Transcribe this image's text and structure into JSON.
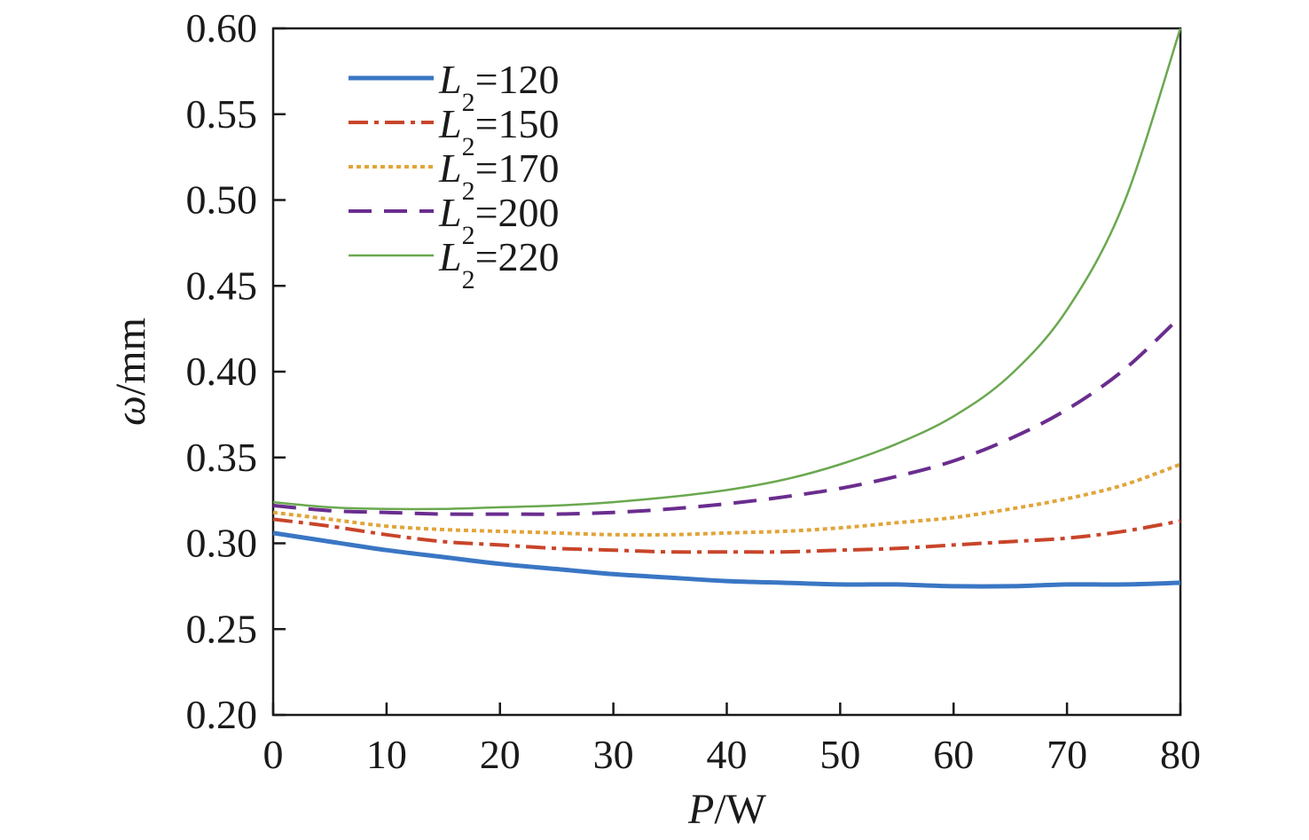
{
  "chart_data": {
    "type": "line",
    "xlabel": {
      "var": "P",
      "unit": "/W"
    },
    "ylabel": {
      "var": "ω",
      "unit": "/mm"
    },
    "xlim": [
      0,
      80
    ],
    "ylim": [
      0.2,
      0.6
    ],
    "xticks": [
      0,
      10,
      20,
      30,
      40,
      50,
      60,
      70,
      80
    ],
    "yticks": [
      0.2,
      0.25,
      0.3,
      0.35,
      0.4,
      0.45,
      0.5,
      0.55,
      0.6
    ],
    "ytick_labels": [
      "0.20",
      "0.25",
      "0.30",
      "0.35",
      "0.40",
      "0.45",
      "0.50",
      "0.55",
      "0.60"
    ],
    "grid": false,
    "legend_position": "top-left",
    "x": [
      0,
      5,
      10,
      15,
      20,
      25,
      30,
      35,
      40,
      45,
      50,
      55,
      60,
      65,
      70,
      75,
      80
    ],
    "series": [
      {
        "name": "120",
        "label_var": "L",
        "label_sub": "2",
        "label_eq": "=120",
        "color": "#3a76c4",
        "style": "solid",
        "width": 5,
        "values": [
          0.306,
          0.301,
          0.296,
          0.292,
          0.288,
          0.285,
          0.282,
          0.28,
          0.278,
          0.277,
          0.276,
          0.276,
          0.275,
          0.275,
          0.276,
          0.276,
          0.277
        ]
      },
      {
        "name": "150",
        "label_var": "L",
        "label_sub": "2",
        "label_eq": "=150",
        "color": "#c8452a",
        "style": "dashdot",
        "width": 4,
        "values": [
          0.314,
          0.31,
          0.305,
          0.301,
          0.299,
          0.297,
          0.296,
          0.295,
          0.295,
          0.295,
          0.296,
          0.297,
          0.299,
          0.301,
          0.303,
          0.307,
          0.313
        ]
      },
      {
        "name": "170",
        "label_var": "L",
        "label_sub": "2",
        "label_eq": "=170",
        "color": "#e0a53a",
        "style": "dotted",
        "width": 4,
        "values": [
          0.318,
          0.314,
          0.31,
          0.308,
          0.307,
          0.306,
          0.305,
          0.305,
          0.306,
          0.307,
          0.309,
          0.312,
          0.315,
          0.32,
          0.326,
          0.334,
          0.346
        ]
      },
      {
        "name": "200",
        "label_var": "L",
        "label_sub": "2",
        "label_eq": "=200",
        "color": "#6a2d8e",
        "style": "dashed",
        "width": 4,
        "values": [
          0.322,
          0.319,
          0.318,
          0.317,
          0.317,
          0.317,
          0.318,
          0.32,
          0.323,
          0.327,
          0.332,
          0.339,
          0.348,
          0.361,
          0.378,
          0.401,
          0.432
        ]
      },
      {
        "name": "220",
        "label_var": "L",
        "label_sub": "2",
        "label_eq": "=220",
        "color": "#6aa84f",
        "style": "solid",
        "width": 2.5,
        "values": [
          0.324,
          0.321,
          0.32,
          0.32,
          0.321,
          0.322,
          0.324,
          0.327,
          0.331,
          0.337,
          0.346,
          0.358,
          0.374,
          0.398,
          0.436,
          0.498,
          0.6
        ]
      }
    ]
  }
}
